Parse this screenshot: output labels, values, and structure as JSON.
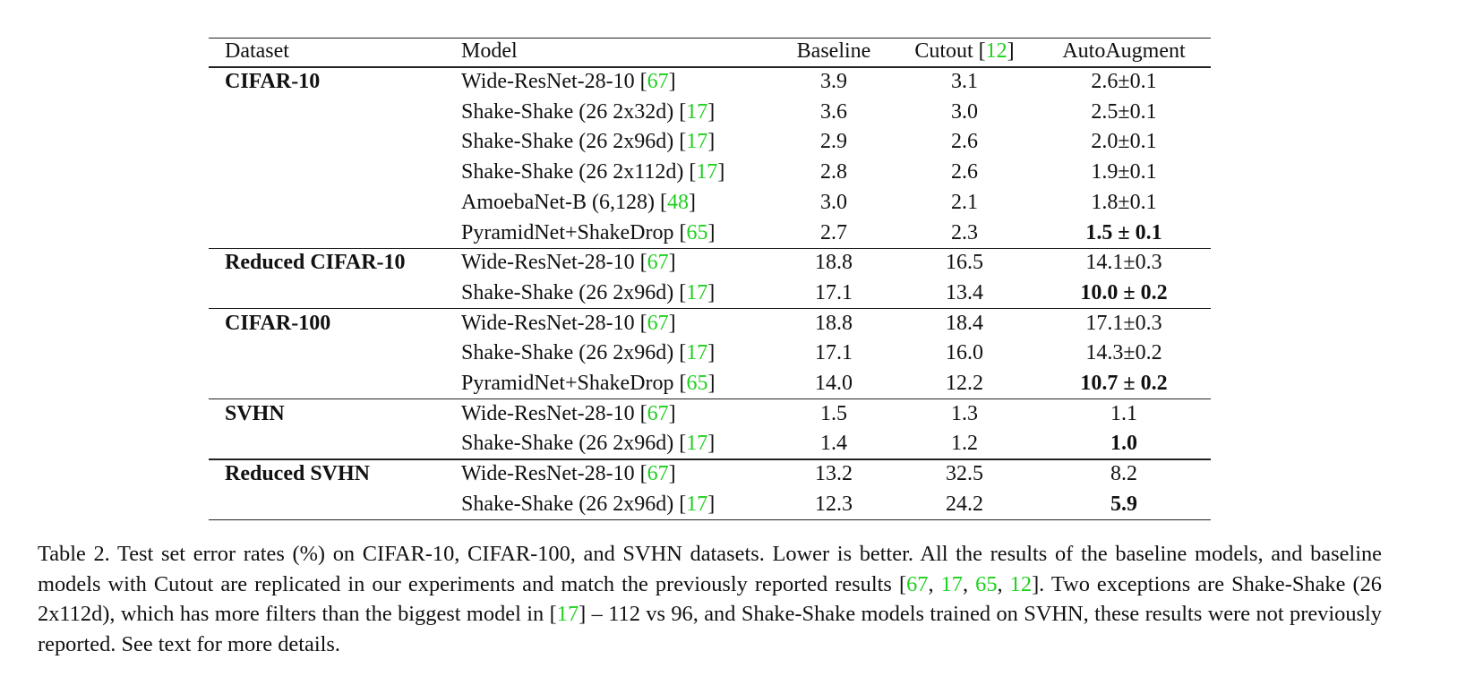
{
  "table": {
    "header": [
      [
        "Dataset"
      ],
      [
        "Model"
      ],
      [
        "Baseline"
      ],
      [
        "Cutout [",
        "12",
        "]"
      ],
      [
        "AutoAugment"
      ]
    ],
    "groups": [
      {
        "dataset": "CIFAR-10",
        "rows": [
          {
            "model": [
              "Wide-ResNet-28-10 [",
              "67",
              "]"
            ],
            "baseline": "3.9",
            "cutout": "3.1",
            "autoaugment": "2.6±0.1"
          },
          {
            "model": [
              "Shake-Shake (26 2x32d) [",
              "17",
              "]"
            ],
            "baseline": "3.6",
            "cutout": "3.0",
            "autoaugment": "2.5±0.1"
          },
          {
            "model": [
              "Shake-Shake (26 2x96d) [",
              "17",
              "]"
            ],
            "baseline": "2.9",
            "cutout": "2.6",
            "autoaugment": "2.0±0.1"
          },
          {
            "model": [
              "Shake-Shake (26 2x112d) [",
              "17",
              "]"
            ],
            "baseline": "2.8",
            "cutout": "2.6",
            "autoaugment": "1.9±0.1"
          },
          {
            "model": [
              "AmoebaNet-B (6,128) [",
              "48",
              "]"
            ],
            "baseline": "3.0",
            "cutout": "2.1",
            "autoaugment": "1.8±0.1"
          },
          {
            "model": [
              "PyramidNet+ShakeDrop [",
              "65",
              "]"
            ],
            "baseline": "2.7",
            "cutout": "2.3",
            "autoaugment": "1.5 ± 0.1",
            "bold": true
          }
        ]
      },
      {
        "dataset": "Reduced CIFAR-10",
        "rows": [
          {
            "model": [
              "Wide-ResNet-28-10 [",
              "67",
              "]"
            ],
            "baseline": "18.8",
            "cutout": "16.5",
            "autoaugment": "14.1±0.3"
          },
          {
            "model": [
              "Shake-Shake (26 2x96d) [",
              "17",
              "]"
            ],
            "baseline": "17.1",
            "cutout": "13.4",
            "autoaugment": "10.0 ± 0.2",
            "bold": true
          }
        ]
      },
      {
        "dataset": "CIFAR-100",
        "rows": [
          {
            "model": [
              "Wide-ResNet-28-10 [",
              "67",
              "]"
            ],
            "baseline": "18.8",
            "cutout": "18.4",
            "autoaugment": "17.1±0.3"
          },
          {
            "model": [
              "Shake-Shake (26 2x96d) [",
              "17",
              "]"
            ],
            "baseline": "17.1",
            "cutout": "16.0",
            "autoaugment": "14.3±0.2"
          },
          {
            "model": [
              "PyramidNet+ShakeDrop [",
              "65",
              "]"
            ],
            "baseline": "14.0",
            "cutout": "12.2",
            "autoaugment": "10.7 ± 0.2",
            "bold": true
          }
        ]
      },
      {
        "dataset": "SVHN",
        "rows": [
          {
            "model": [
              "Wide-ResNet-28-10 [",
              "67",
              "]"
            ],
            "baseline": "1.5",
            "cutout": "1.3",
            "autoaugment": "1.1"
          },
          {
            "model": [
              "Shake-Shake (26 2x96d) [",
              "17",
              "]"
            ],
            "baseline": "1.4",
            "cutout": "1.2",
            "autoaugment": "1.0",
            "bold": true
          }
        ]
      },
      {
        "dataset": "Reduced SVHN",
        "rows": [
          {
            "model": [
              "Wide-ResNet-28-10 [",
              "67",
              "]"
            ],
            "baseline": "13.2",
            "cutout": "32.5",
            "autoaugment": "8.2"
          },
          {
            "model": [
              "Shake-Shake (26 2x96d) [",
              "17",
              "]"
            ],
            "baseline": "12.3",
            "cutout": "24.2",
            "autoaugment": "5.9",
            "bold": true
          }
        ]
      }
    ]
  },
  "caption": [
    "Table 2. Test set error rates (%) on CIFAR-10, CIFAR-100, and SVHN datasets. Lower is better. All the results of the baseline models, and baseline models with Cutout are replicated in our experiments and match the previously reported results [",
    "67",
    ", ",
    "17",
    ", ",
    "65",
    ", ",
    "12",
    "]. Two exceptions are Shake-Shake (26 2x112d), which has more filters than the biggest model in [",
    "17",
    "] – 112 vs 96, and Shake-Shake models trained on SVHN, these results were not previously reported. See text for more details."
  ]
}
